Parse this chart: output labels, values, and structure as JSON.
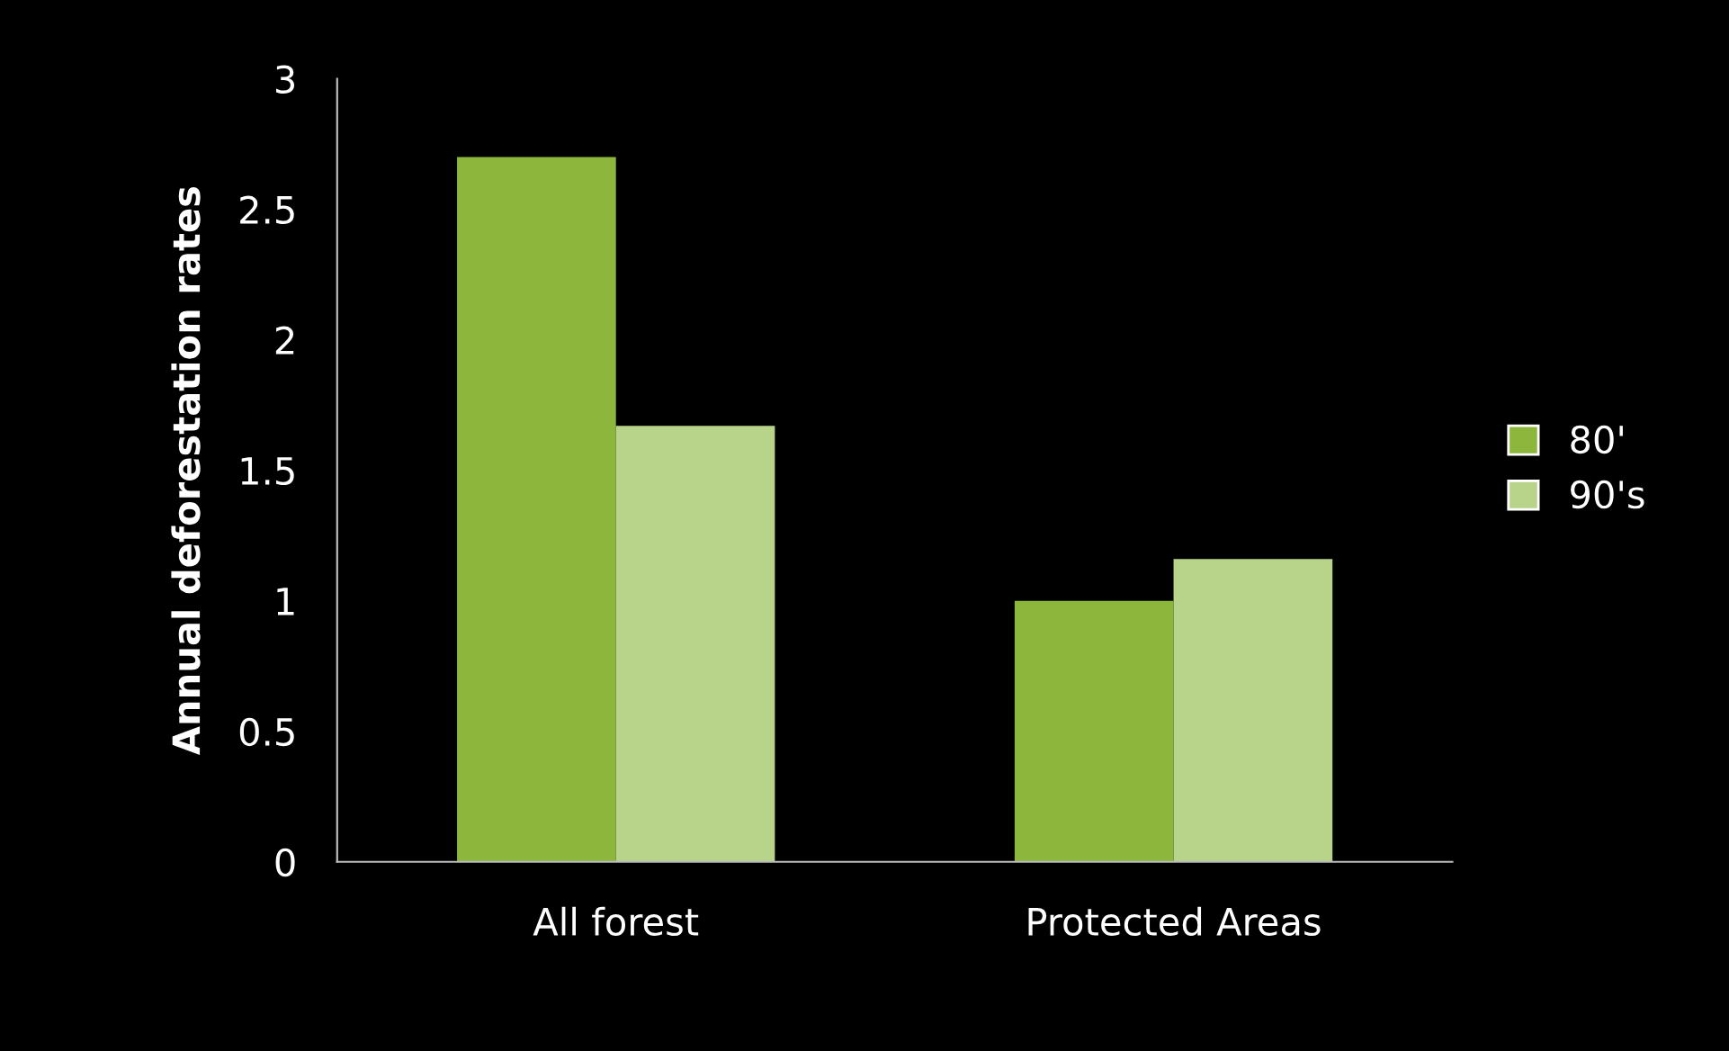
{
  "chart_data": {
    "type": "bar",
    "ylabel": "Annual deforestation rates",
    "categories": [
      "All forest",
      "Protected Areas"
    ],
    "series": [
      {
        "name": "80'",
        "color": "#8db63c",
        "values": [
          2.7,
          1.0
        ]
      },
      {
        "name": "90's",
        "color": "#b8d48a",
        "values": [
          1.67,
          1.16
        ]
      }
    ],
    "ylim": [
      0,
      3
    ],
    "yticks": [
      0,
      0.5,
      1,
      1.5,
      2,
      2.5,
      3
    ],
    "grid": false,
    "legend": "right"
  }
}
